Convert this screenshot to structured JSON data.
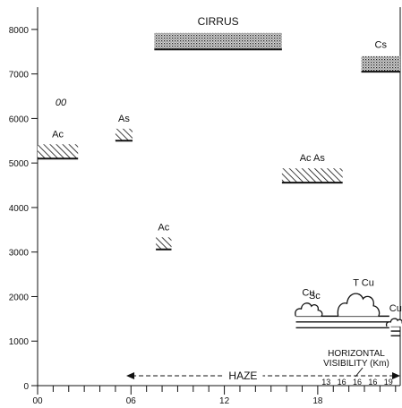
{
  "chart_data": {
    "type": "other",
    "subtype": "cloud-layer time-height cross-section",
    "x_axis": {
      "range": [
        0,
        23.3
      ],
      "ticks": [
        0,
        6,
        12,
        18
      ],
      "tick_labels": [
        "00",
        "06",
        "12",
        "18"
      ],
      "minor_tick_step": 1
    },
    "y_axis": {
      "range": [
        0,
        8500
      ],
      "ticks": [
        0,
        1000,
        2000,
        3000,
        4000,
        5000,
        6000,
        7000,
        8000
      ],
      "tick_labels": [
        "0",
        "1000",
        "2000",
        "3000",
        "4000",
        "5000",
        "6000",
        "7000",
        "8000"
      ]
    },
    "layers": [
      {
        "label": "CIRRUS",
        "x_start": 7.5,
        "x_end": 15.7,
        "base": 7550,
        "top": 7920,
        "pattern": "stipple"
      },
      {
        "label": "Cs",
        "x_start": 20.8,
        "x_end": 23.3,
        "base": 7050,
        "top": 7400,
        "pattern": "stipple"
      },
      {
        "label": "Ac",
        "x_start": 0,
        "x_end": 2.6,
        "base": 5100,
        "top": 5420,
        "pattern": "hatch"
      },
      {
        "label": "As",
        "x_start": 5.0,
        "x_end": 6.1,
        "base": 5500,
        "top": 5770,
        "pattern": "hatch"
      },
      {
        "label": "Ac As",
        "x_start": 15.7,
        "x_end": 19.6,
        "base": 4560,
        "top": 4880,
        "pattern": "hatch"
      },
      {
        "label": "Ac",
        "x_start": 7.6,
        "x_end": 8.6,
        "base": 3060,
        "top": 3330,
        "pattern": "hatch"
      },
      {
        "label": "Sc",
        "x_start": 16.6,
        "x_end": 22.6,
        "base": 1300,
        "top": 1560,
        "pattern": "lines"
      },
      {
        "label": "",
        "x_start": 22.7,
        "x_end": 23.3,
        "base": 1120,
        "top": 1330,
        "pattern": "lines"
      }
    ],
    "cumulus": [
      {
        "label": "Cu",
        "x_center": 17.4,
        "base": 1560,
        "height": 300
      },
      {
        "label": "T Cu",
        "x_center": 20.6,
        "base": 1560,
        "height": 520
      },
      {
        "label": "Cu",
        "x_center": 23.0,
        "base": 1330,
        "height": 180
      }
    ],
    "annotations": {
      "hour_label": "00",
      "haze": {
        "label": "HAZE",
        "x_start": 5.7,
        "x_end": 23.3,
        "y": 220
      },
      "visibility_title": [
        "HORIZONTAL",
        "VISIBILITY (Km)"
      ],
      "visibility_values": [
        {
          "x": 19.0,
          "value": "13"
        },
        {
          "x": 20.0,
          "value": "16"
        },
        {
          "x": 21.0,
          "value": "16"
        },
        {
          "x": 22.0,
          "value": "16"
        },
        {
          "x": 23.0,
          "value": "19"
        }
      ]
    }
  }
}
